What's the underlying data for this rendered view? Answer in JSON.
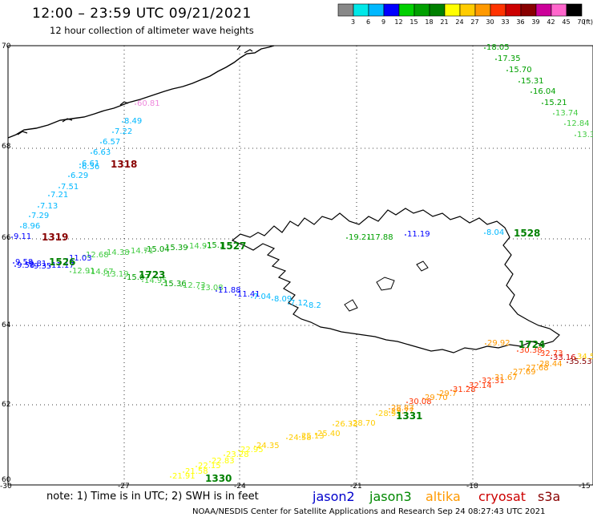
{
  "header": {
    "title": "12:00 – 23:59 UTC 09/21/2021",
    "subtitle": "12 hour collection of altimeter wave heights"
  },
  "legend": {
    "labels": [
      "3",
      "6",
      "9",
      "12",
      "15",
      "18",
      "21",
      "24",
      "27",
      "30",
      "33",
      "36",
      "39",
      "42",
      "45",
      "70"
    ],
    "unit": "(ft)",
    "colors": [
      "#888888",
      "#00e8e8",
      "#00b8ff",
      "#0000ff",
      "#00d000",
      "#00a000",
      "#008000",
      "#ffff00",
      "#ffcc00",
      "#ff9900",
      "#ff3300",
      "#cc0000",
      "#880000",
      "#cc0099",
      "#ff66cc",
      "#000000"
    ]
  },
  "axes": {
    "x_labels": [
      "-30",
      "-27",
      "-24",
      "-21",
      "-18",
      "-15"
    ],
    "y_labels": [
      "70",
      "68",
      "66",
      "64",
      "62",
      "60"
    ]
  },
  "footer": {
    "note": "note:  1) Time is in UTC;  2) SWH is in feet",
    "satellites": [
      {
        "name": "jason2",
        "color": "#0000cc"
      },
      {
        "name": "jason3",
        "color": "#008800"
      },
      {
        "name": "altika",
        "color": "#ff9900"
      },
      {
        "name": "cryosat",
        "color": "#cc0000"
      },
      {
        "name": "s3a",
        "color": "#880000"
      }
    ],
    "credit": "NOAA/NESDIS Center for Satellite Applications and Research    Sep 24 08:27:43 UTC 2021"
  },
  "tracks": [
    {
      "id": "upper-left",
      "time": "1318",
      "time_color": "#880000",
      "values": [
        {
          "v": "60.81",
          "c": "#ee88dd"
        },
        {
          "v": "8.49",
          "c": "#00b8ff"
        },
        {
          "v": "7.22",
          "c": "#00b8ff"
        },
        {
          "v": "6.57",
          "c": "#00b8ff"
        },
        {
          "v": "6.63",
          "c": "#00b8ff"
        },
        {
          "v": "6.61",
          "c": "#00b8ff"
        },
        {
          "v": "6.36",
          "c": "#00b8ff"
        },
        {
          "v": "6.29",
          "c": "#00b8ff"
        },
        {
          "v": "7.51",
          "c": "#00b8ff"
        },
        {
          "v": "7.21",
          "c": "#00b8ff"
        },
        {
          "v": "7.13",
          "c": "#00b8ff"
        },
        {
          "v": "7.29",
          "c": "#00b8ff"
        },
        {
          "v": "8.96",
          "c": "#00b8ff"
        }
      ]
    },
    {
      "id": "left-66",
      "time": "1319",
      "time_color": "#880000",
      "values": [
        {
          "v": "9.11",
          "c": "#0000ff"
        }
      ]
    },
    {
      "id": "top-right",
      "values": [
        {
          "v": "18.05",
          "c": "#00a000"
        },
        {
          "v": "17.35",
          "c": "#00a000"
        },
        {
          "v": "15.70",
          "c": "#00a000"
        },
        {
          "v": "15.31",
          "c": "#00a000"
        },
        {
          "v": "16.04",
          "c": "#00a000"
        },
        {
          "v": "15.21",
          "c": "#00a000"
        },
        {
          "v": "13.74",
          "c": "#44cc44"
        },
        {
          "v": "12.84",
          "c": "#44cc44"
        },
        {
          "v": "13.3",
          "c": "#44cc44"
        }
      ]
    },
    {
      "id": "jason3-upper",
      "time": "1527",
      "time_color": "#008000",
      "values": [
        {
          "v": "12.68",
          "c": "#44cc44"
        },
        {
          "v": "14.38",
          "c": "#44cc44"
        },
        {
          "v": "14.71",
          "c": "#44cc44"
        },
        {
          "v": "15.04",
          "c": "#00a000"
        },
        {
          "v": "15.39",
          "c": "#00a000"
        },
        {
          "v": "14.91",
          "c": "#44cc44"
        },
        {
          "v": "15.1",
          "c": "#00a000"
        }
      ]
    },
    {
      "id": "jason3-lower",
      "time": "1723",
      "time_color": "#008000",
      "values": [
        {
          "v": "12.91",
          "c": "#44cc44"
        },
        {
          "v": "14.67",
          "c": "#44cc44"
        },
        {
          "v": "13.19",
          "c": "#44cc44"
        },
        {
          "v": "15.07",
          "c": "#00a000"
        },
        {
          "v": "14.95",
          "c": "#44cc44"
        },
        {
          "v": "15.36",
          "c": "#00a000"
        },
        {
          "v": "12.73",
          "c": "#44cc44"
        },
        {
          "v": "13.08",
          "c": "#44cc44"
        }
      ]
    },
    {
      "id": "left-cluster",
      "time": "1526",
      "time_color": "#008000",
      "values": [
        {
          "v": "9.58",
          "c": "#0000ff"
        },
        {
          "v": "9.58",
          "c": "#0000ff"
        },
        {
          "v": "9.81",
          "c": "#0000ff"
        },
        {
          "v": "9.35",
          "c": "#0000ff"
        },
        {
          "v": "11.17",
          "c": "#0000ff"
        },
        {
          "v": "11.03",
          "c": "#0000ff"
        }
      ]
    },
    {
      "id": "blue-diag",
      "values": [
        {
          "v": "11.88",
          "c": "#0000ff"
        },
        {
          "v": "11.41",
          "c": "#0000ff"
        },
        {
          "v": "7.04",
          "c": "#00b8ff"
        },
        {
          "v": "8.09",
          "c": "#00b8ff"
        },
        {
          "v": "7.12",
          "c": "#00b8ff"
        },
        {
          "v": "8.2",
          "c": "#00b8ff"
        }
      ]
    },
    {
      "id": "north-iceland",
      "values": [
        {
          "v": "19.21",
          "c": "#00a000"
        },
        {
          "v": "17.88",
          "c": "#00a000"
        },
        {
          "v": "11.19",
          "c": "#0000ff"
        },
        {
          "v": "8.04",
          "c": "#00b8ff"
        }
      ]
    },
    {
      "id": "ne-time",
      "time": "1528",
      "time_color": "#008000"
    },
    {
      "id": "southeast",
      "time": "1724",
      "time_color": "#008000",
      "values": [
        {
          "v": "29.92",
          "c": "#ff9900"
        },
        {
          "v": "30.38",
          "c": "#ff3300"
        },
        {
          "v": "32.73",
          "c": "#ff3300"
        },
        {
          "v": "33.16",
          "c": "#cc0000"
        },
        {
          "v": "35.53",
          "c": "#880000"
        },
        {
          "v": "34.5",
          "c": "#ffcc00"
        }
      ]
    },
    {
      "id": "diagonal-south",
      "time": "1331",
      "time_color": "#008000",
      "values": [
        {
          "v": "30.08",
          "c": "#ff3300"
        },
        {
          "v": "31.28",
          "c": "#ff3300"
        },
        {
          "v": "32.14",
          "c": "#ff3300"
        },
        {
          "v": "32.31",
          "c": "#ff3300"
        },
        {
          "v": "31.67",
          "c": "#ff9900"
        },
        {
          "v": "27.69",
          "c": "#ff9900"
        },
        {
          "v": "29.7",
          "c": "#ff9900"
        },
        {
          "v": "27.68",
          "c": "#ff9900"
        },
        {
          "v": "28.44",
          "c": "#ff9900"
        },
        {
          "v": "29.70",
          "c": "#ff9900"
        },
        {
          "v": "28.83",
          "c": "#ff9900"
        },
        {
          "v": "29.77",
          "c": "#ff9900"
        },
        {
          "v": "28.91",
          "c": "#ffcc00"
        },
        {
          "v": "28.70",
          "c": "#ffcc00"
        },
        {
          "v": "25.40",
          "c": "#ffcc00"
        },
        {
          "v": "25.13",
          "c": "#ffcc00"
        },
        {
          "v": "24.58",
          "c": "#ffcc00"
        },
        {
          "v": "26.33",
          "c": "#ffcc00"
        }
      ]
    },
    {
      "id": "bottom",
      "time": "1330",
      "time_color": "#008000",
      "values": [
        {
          "v": "21.91",
          "c": "#ffff00"
        },
        {
          "v": "21.58",
          "c": "#ffff00"
        },
        {
          "v": "22.15",
          "c": "#ffff00"
        },
        {
          "v": "22.83",
          "c": "#ffff00"
        },
        {
          "v": "23.28",
          "c": "#ffff00"
        },
        {
          "v": "22.95",
          "c": "#ffff00"
        },
        {
          "v": "24.35",
          "c": "#ffcc00"
        }
      ]
    }
  ]
}
